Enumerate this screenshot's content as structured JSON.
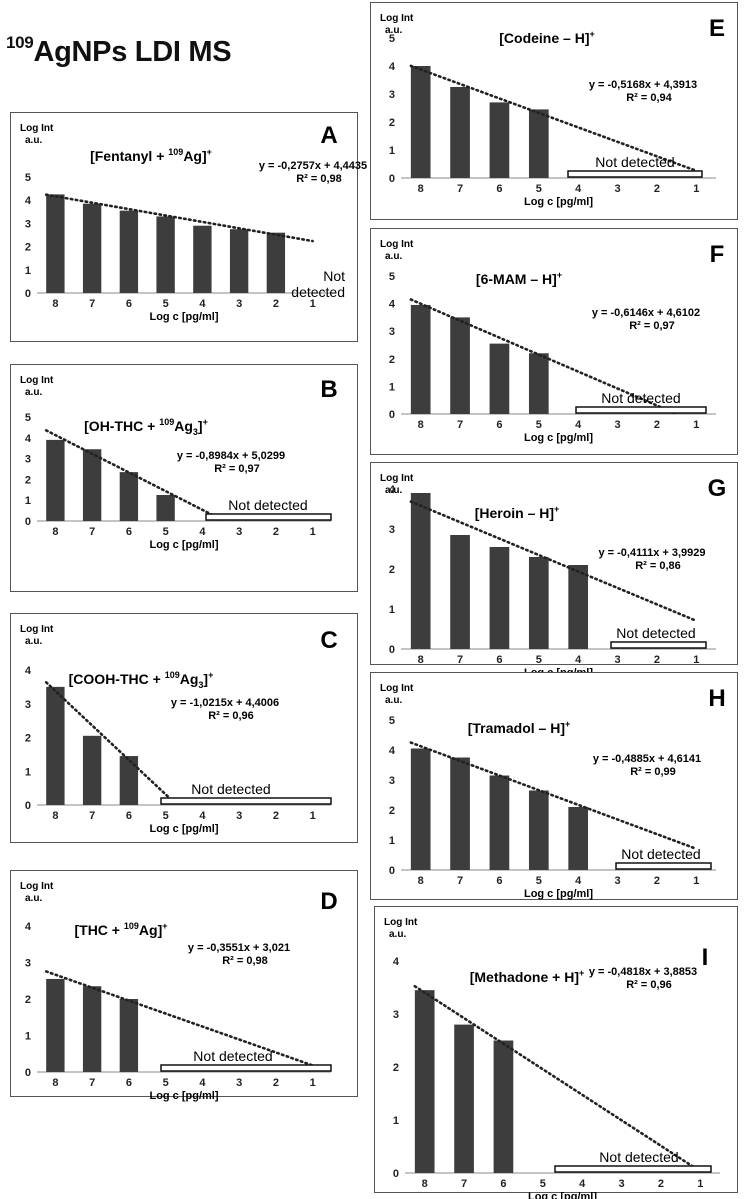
{
  "header": {
    "title_sup": "109",
    "title_text": "AgNPs LDI MS"
  },
  "chart_data": [
    {
      "id": "A",
      "type": "bar",
      "letter": "A",
      "compound": {
        "pre": "[Fentanyl + ",
        "sup": "109",
        "mid": "Ag]",
        "sub": "",
        "post": "",
        "charge": "+"
      },
      "ylabel": "Log Int",
      "ylabel_unit": "a.u.",
      "xlabel": "Log c [pg/ml]",
      "categories": [
        "8",
        "7",
        "6",
        "5",
        "4",
        "3",
        "2",
        "1"
      ],
      "values": [
        4.25,
        3.85,
        3.55,
        3.3,
        2.9,
        2.75,
        2.6,
        null
      ],
      "yticks": [
        "0",
        "1",
        "2",
        "3",
        "4",
        "5"
      ],
      "ylim": [
        0,
        5
      ],
      "trendline": {
        "slope": -0.2757,
        "intercept": 4.4435
      },
      "equation": "y = -0,2757x + 4,4435",
      "r2": "R² = 0,98",
      "not_detected": "Not detected",
      "not_detected_line1": "Not",
      "not_detected_line2": "detected"
    },
    {
      "id": "B",
      "type": "bar",
      "letter": "B",
      "compound": {
        "pre": "[OH-THC + ",
        "sup": "109",
        "mid": "Ag",
        "sub": "3",
        "post": "]",
        "charge": "+"
      },
      "ylabel": "Log Int",
      "ylabel_unit": "a.u.",
      "xlabel": "Log c [pg/ml]",
      "categories": [
        "8",
        "7",
        "6",
        "5",
        "4",
        "3",
        "2",
        "1"
      ],
      "values": [
        3.9,
        3.45,
        2.35,
        1.25,
        null,
        null,
        null,
        null
      ],
      "yticks": [
        "0",
        "1",
        "2",
        "3",
        "4",
        "5"
      ],
      "ylim": [
        0,
        5
      ],
      "trendline": {
        "slope": -0.8984,
        "intercept": 5.0299
      },
      "equation": "y = -0,8984x + 5,0299",
      "r2": "R² = 0,97",
      "not_detected": "Not detected"
    },
    {
      "id": "C",
      "type": "bar",
      "letter": "C",
      "compound": {
        "pre": "[COOH-THC + ",
        "sup": "109",
        "mid": "Ag",
        "sub": "3",
        "post": "]",
        "charge": "+"
      },
      "ylabel": "Log Int",
      "ylabel_unit": "a.u.",
      "xlabel": "Log c [pg/ml]",
      "categories": [
        "8",
        "7",
        "6",
        "5",
        "4",
        "3",
        "2",
        "1"
      ],
      "values": [
        3.5,
        2.05,
        1.45,
        null,
        null,
        null,
        null,
        null
      ],
      "yticks": [
        "0",
        "1",
        "2",
        "3",
        "4"
      ],
      "ylim": [
        0,
        4
      ],
      "trendline": {
        "slope": -1.0215,
        "intercept": 4.4006
      },
      "equation": "y = -1,0215x + 4,4006",
      "r2": "R² = 0,96",
      "not_detected": "Not detected"
    },
    {
      "id": "D",
      "type": "bar",
      "letter": "D",
      "compound": {
        "pre": "[THC + ",
        "sup": "109",
        "mid": "Ag]",
        "sub": "",
        "post": "",
        "charge": "+"
      },
      "ylabel": "Log Int",
      "ylabel_unit": "a.u.",
      "xlabel": "Log c [pg/ml]",
      "categories": [
        "8",
        "7",
        "6",
        "5",
        "4",
        "3",
        "2",
        "1"
      ],
      "values": [
        2.55,
        2.35,
        2.0,
        null,
        null,
        null,
        null,
        null
      ],
      "yticks": [
        "0",
        "1",
        "2",
        "3",
        "4"
      ],
      "ylim": [
        0,
        4
      ],
      "trendline": {
        "slope": -0.3551,
        "intercept": 3.021
      },
      "equation": "y = -0,3551x + 3,021",
      "r2": "R² = 0,98",
      "not_detected": "Not detected"
    },
    {
      "id": "E",
      "type": "bar",
      "letter": "E",
      "compound": {
        "pre": "[Codeine – H]",
        "sup": "",
        "mid": "",
        "sub": "",
        "post": "",
        "charge": "+"
      },
      "ylabel": "Log Int",
      "ylabel_unit": "a.u.",
      "xlabel": "Log c [pg/ml]",
      "categories": [
        "8",
        "7",
        "6",
        "5",
        "4",
        "3",
        "2",
        "1"
      ],
      "values": [
        4.0,
        3.25,
        2.7,
        2.45,
        null,
        null,
        null,
        null
      ],
      "yticks": [
        "0",
        "1",
        "2",
        "3",
        "4",
        "5"
      ],
      "ylim": [
        0,
        5
      ],
      "trendline": {
        "slope": -0.5168,
        "intercept": 4.3913
      },
      "equation": "y = -0,5168x + 4,3913",
      "r2": "R² = 0,94",
      "not_detected": "Not detected"
    },
    {
      "id": "F",
      "type": "bar",
      "letter": "F",
      "compound": {
        "pre": "[6-MAM – H]",
        "sup": "",
        "mid": "",
        "sub": "",
        "post": "",
        "charge": "+"
      },
      "ylabel": "Log Int",
      "ylabel_unit": "a.u.",
      "xlabel": "Log c [pg/ml]",
      "categories": [
        "8",
        "7",
        "6",
        "5",
        "4",
        "3",
        "2",
        "1"
      ],
      "values": [
        3.95,
        3.5,
        2.55,
        2.2,
        null,
        null,
        null,
        null
      ],
      "yticks": [
        "0",
        "1",
        "2",
        "3",
        "4",
        "5"
      ],
      "ylim": [
        0,
        5
      ],
      "trendline": {
        "slope": -0.6146,
        "intercept": 4.6102
      },
      "equation": "y = -0,6146x + 4,6102",
      "r2": "R² = 0,97",
      "not_detected": "Not detected"
    },
    {
      "id": "G",
      "type": "bar",
      "letter": "G",
      "compound": {
        "pre": "[Heroin – H]",
        "sup": "",
        "mid": "",
        "sub": "",
        "post": "",
        "charge": "+"
      },
      "ylabel": "Log Int",
      "ylabel_unit": "a.u.",
      "xlabel": "Log c [pg/ml]",
      "categories": [
        "8",
        "7",
        "6",
        "5",
        "4",
        "3",
        "2",
        "1"
      ],
      "values": [
        3.9,
        2.85,
        2.55,
        2.3,
        2.1,
        null,
        null,
        null
      ],
      "yticks": [
        "0",
        "1",
        "2",
        "3",
        "4"
      ],
      "ylim": [
        0,
        4
      ],
      "trendline": {
        "slope": -0.4111,
        "intercept": 3.9929
      },
      "equation": "y = -0,4111x + 3,9929",
      "r2": "R² = 0,86",
      "not_detected": "Not detected"
    },
    {
      "id": "H",
      "type": "bar",
      "letter": "H",
      "compound": {
        "pre": "[Tramadol – H]",
        "sup": "",
        "mid": "",
        "sub": "",
        "post": "",
        "charge": "+"
      },
      "ylabel": "Log Int",
      "ylabel_unit": "a.u.",
      "xlabel": "Log c [pg/ml]",
      "categories": [
        "8",
        "7",
        "6",
        "5",
        "4",
        "3",
        "2",
        "1"
      ],
      "values": [
        4.05,
        3.75,
        3.15,
        2.65,
        2.1,
        null,
        null,
        null
      ],
      "yticks": [
        "0",
        "1",
        "2",
        "3",
        "4",
        "5"
      ],
      "ylim": [
        0,
        5
      ],
      "trendline": {
        "slope": -0.4885,
        "intercept": 4.6141
      },
      "equation": "y = -0,4885x + 4,6141",
      "r2": "R² = 0,99",
      "not_detected": "Not detected"
    },
    {
      "id": "I",
      "type": "bar",
      "letter": "I",
      "compound": {
        "pre": "[Methadone + H]",
        "sup": "",
        "mid": "",
        "sub": "",
        "post": "",
        "charge": "+"
      },
      "ylabel": "Log Int",
      "ylabel_unit": "a.u.",
      "xlabel": "Log c [pg/ml]",
      "categories": [
        "8",
        "7",
        "6",
        "5",
        "4",
        "3",
        "2",
        "1"
      ],
      "values": [
        3.45,
        2.8,
        2.5,
        null,
        null,
        null,
        null,
        null
      ],
      "yticks": [
        "0",
        "1",
        "2",
        "3",
        "4"
      ],
      "ylim": [
        0,
        4
      ],
      "trendline": {
        "slope": -0.4818,
        "intercept": 3.8853
      },
      "equation": "y = -0,4818x + 3,8853",
      "r2": "R² = 0,96",
      "not_detected": "Not detected"
    }
  ]
}
